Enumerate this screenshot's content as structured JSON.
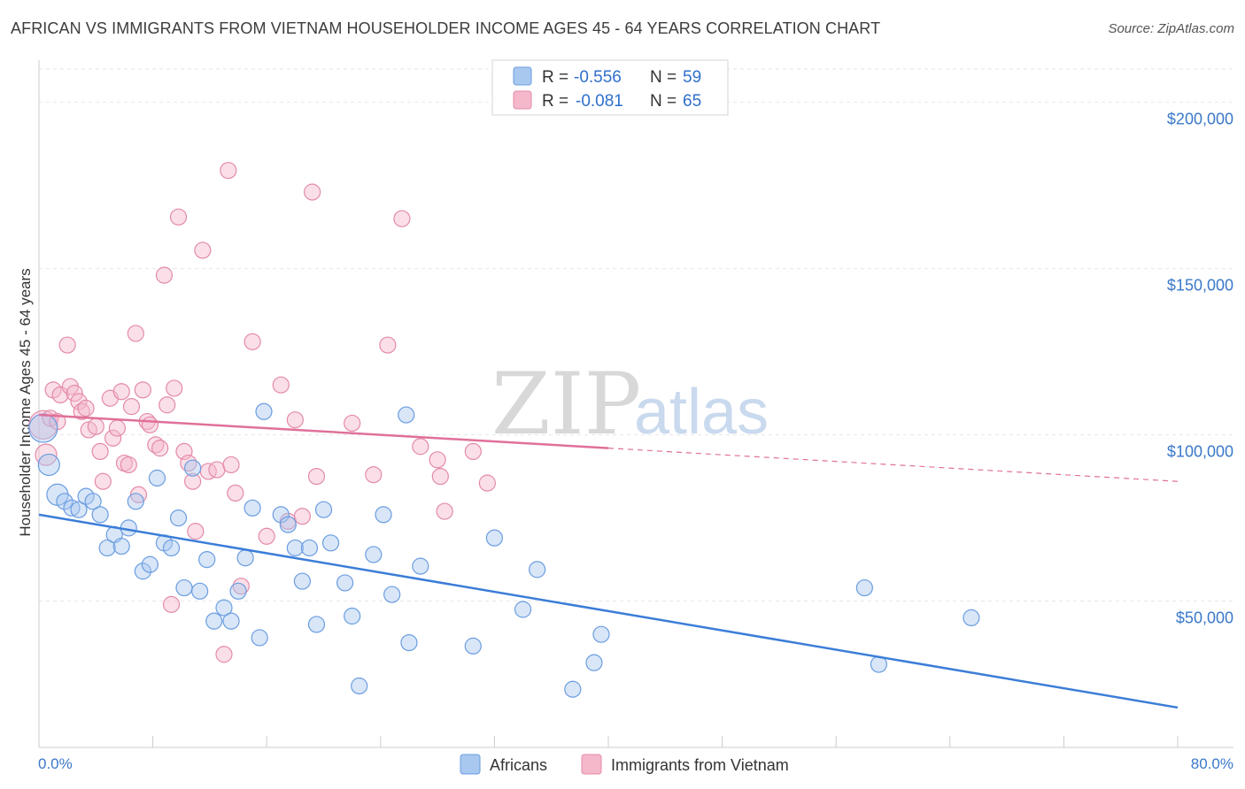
{
  "header": {
    "title": "AFRICAN VS IMMIGRANTS FROM VIETNAM HOUSEHOLDER INCOME AGES 45 - 64 YEARS CORRELATION CHART",
    "source": "Source: ZipAtlas.com"
  },
  "colors": {
    "blue": "#3b7dd8",
    "blue_fill": "#a9c8f0",
    "pink": "#e0709a",
    "pink_fill": "#f5b8cb",
    "axis_text": "#3a78c9"
  },
  "watermark": {
    "part1": "ZIP",
    "part2": "atlas"
  },
  "stats": {
    "r_label": "R =",
    "n_label": "N =",
    "africans": {
      "r": "-0.556",
      "n": "59"
    },
    "vietnam": {
      "r": "-0.081",
      "n": "65"
    }
  },
  "legend": {
    "africans": "Africans",
    "vietnam": "Immigrants from Vietnam"
  },
  "chart_data": {
    "type": "scatter",
    "title": "AFRICAN VS IMMIGRANTS FROM VIETNAM HOUSEHOLDER INCOME AGES 45 - 64 YEARS CORRELATION CHART",
    "xlabel": "",
    "ylabel": "Householder Income Ages 45 - 64 years",
    "xlim": [
      0,
      80
    ],
    "ylim": [
      10000,
      210000
    ],
    "x_tick_labels": {
      "min": "0.0%",
      "max": "80.0%"
    },
    "y_ticks": [
      {
        "value": 50000,
        "label": "$50,000"
      },
      {
        "value": 100000,
        "label": "$100,000"
      },
      {
        "value": 150000,
        "label": "$150,000"
      },
      {
        "value": 200000,
        "label": "$200,000"
      }
    ],
    "series": [
      {
        "name": "Africans",
        "color": "#3b7dd8",
        "trend": {
          "x0": 0,
          "y0": 76000,
          "x1": 80,
          "y1": 18000,
          "dashed_from": null
        },
        "points": [
          [
            0.3,
            102000,
            "lg"
          ],
          [
            0.7,
            91000,
            "md"
          ],
          [
            1.3,
            82000,
            "md"
          ],
          [
            1.8,
            80000
          ],
          [
            2.3,
            78000
          ],
          [
            2.8,
            77500
          ],
          [
            3.3,
            81500
          ],
          [
            3.8,
            80000
          ],
          [
            4.3,
            76000
          ],
          [
            4.8,
            66000
          ],
          [
            5.3,
            70000
          ],
          [
            5.8,
            66500
          ],
          [
            6.3,
            72000
          ],
          [
            6.8,
            80000
          ],
          [
            7.3,
            59000
          ],
          [
            7.8,
            61000
          ],
          [
            8.3,
            87000
          ],
          [
            8.8,
            67500
          ],
          [
            9.3,
            66000
          ],
          [
            9.8,
            75000
          ],
          [
            10.2,
            54000
          ],
          [
            10.8,
            90000
          ],
          [
            11.3,
            53000
          ],
          [
            11.8,
            62500
          ],
          [
            12.3,
            44000
          ],
          [
            13.0,
            48000
          ],
          [
            13.5,
            44000
          ],
          [
            14.0,
            53000
          ],
          [
            14.5,
            63000
          ],
          [
            15.0,
            78000
          ],
          [
            15.5,
            39000
          ],
          [
            15.8,
            107000
          ],
          [
            17.0,
            76000
          ],
          [
            17.5,
            73000
          ],
          [
            18.0,
            66000
          ],
          [
            18.5,
            56000
          ],
          [
            19.0,
            66000
          ],
          [
            19.5,
            43000
          ],
          [
            20.0,
            77500
          ],
          [
            20.5,
            67500
          ],
          [
            21.5,
            55500
          ],
          [
            22.0,
            45500
          ],
          [
            22.5,
            24500
          ],
          [
            23.5,
            64000
          ],
          [
            24.2,
            76000
          ],
          [
            24.8,
            52000
          ],
          [
            25.8,
            106000
          ],
          [
            26.0,
            37500
          ],
          [
            26.8,
            60500
          ],
          [
            30.5,
            36500
          ],
          [
            32.0,
            69000
          ],
          [
            34.0,
            47500
          ],
          [
            35.0,
            59500
          ],
          [
            37.5,
            23500
          ],
          [
            39.0,
            31500
          ],
          [
            39.5,
            40000
          ],
          [
            58.0,
            54000
          ],
          [
            59.0,
            31000
          ],
          [
            65.5,
            45000
          ]
        ]
      },
      {
        "name": "Immigrants from Vietnam",
        "color": "#e0709a",
        "trend": {
          "x0": 0,
          "y0": 106000,
          "x1": 80,
          "y1": 86000,
          "dashed_from": 40
        },
        "points": [
          [
            0.3,
            103000,
            "lg"
          ],
          [
            0.5,
            94000,
            "md"
          ],
          [
            0.8,
            105000
          ],
          [
            1.0,
            113500
          ],
          [
            1.3,
            104000
          ],
          [
            1.5,
            112000
          ],
          [
            2.0,
            127000
          ],
          [
            2.2,
            114500
          ],
          [
            2.5,
            112500
          ],
          [
            2.8,
            110000
          ],
          [
            3.0,
            107000
          ],
          [
            3.3,
            108000
          ],
          [
            3.5,
            101500
          ],
          [
            4.0,
            102500
          ],
          [
            4.3,
            95000
          ],
          [
            4.5,
            86000
          ],
          [
            5.0,
            111000
          ],
          [
            5.2,
            99000
          ],
          [
            5.5,
            102000
          ],
          [
            5.8,
            113000
          ],
          [
            6.0,
            91500
          ],
          [
            6.3,
            91000
          ],
          [
            6.5,
            108500
          ],
          [
            6.8,
            130500
          ],
          [
            7.0,
            82000
          ],
          [
            7.3,
            113500
          ],
          [
            7.6,
            104000
          ],
          [
            7.8,
            103000
          ],
          [
            8.2,
            97000
          ],
          [
            8.5,
            96000
          ],
          [
            8.8,
            148000
          ],
          [
            9.0,
            109000
          ],
          [
            9.3,
            49000
          ],
          [
            9.5,
            114000
          ],
          [
            9.8,
            165500
          ],
          [
            10.2,
            95000
          ],
          [
            10.5,
            91500
          ],
          [
            10.8,
            86000
          ],
          [
            11.0,
            71000
          ],
          [
            11.5,
            155500
          ],
          [
            11.9,
            89000
          ],
          [
            12.5,
            89500
          ],
          [
            13.0,
            34000
          ],
          [
            13.3,
            179500
          ],
          [
            13.5,
            91000
          ],
          [
            13.8,
            82500
          ],
          [
            14.2,
            54500
          ],
          [
            15.0,
            128000
          ],
          [
            16.0,
            69500
          ],
          [
            17.0,
            115000
          ],
          [
            17.5,
            74000
          ],
          [
            18.0,
            104500
          ],
          [
            18.5,
            75500
          ],
          [
            19.2,
            173000
          ],
          [
            19.5,
            87500
          ],
          [
            22.0,
            103500
          ],
          [
            23.5,
            88000
          ],
          [
            24.5,
            127000
          ],
          [
            25.5,
            165000
          ],
          [
            26.8,
            96500
          ],
          [
            28.0,
            92500
          ],
          [
            28.2,
            87500
          ],
          [
            28.5,
            77000
          ],
          [
            30.5,
            95000
          ],
          [
            31.5,
            85500
          ]
        ]
      }
    ]
  }
}
